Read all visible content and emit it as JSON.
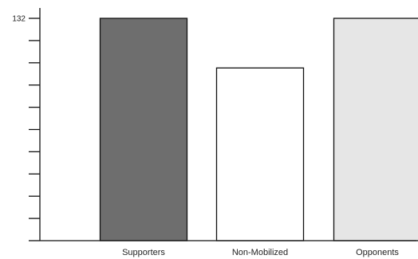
{
  "chart_data": {
    "type": "bar",
    "categories": [
      "Supporters",
      "Non-Mobilized",
      "Opponents"
    ],
    "values": [
      132,
      107,
      132
    ],
    "ylim": [
      20,
      132
    ],
    "y_tick_count": 11,
    "y_tick_labels": [
      {
        "value": 132,
        "label": "132"
      }
    ],
    "bar_colors": [
      "#6e6e6e",
      "#ffffff",
      "#e6e6e6"
    ],
    "bar_edge_color": "#111111",
    "axis_color": "#111111",
    "grid": false,
    "legend": "none"
  }
}
